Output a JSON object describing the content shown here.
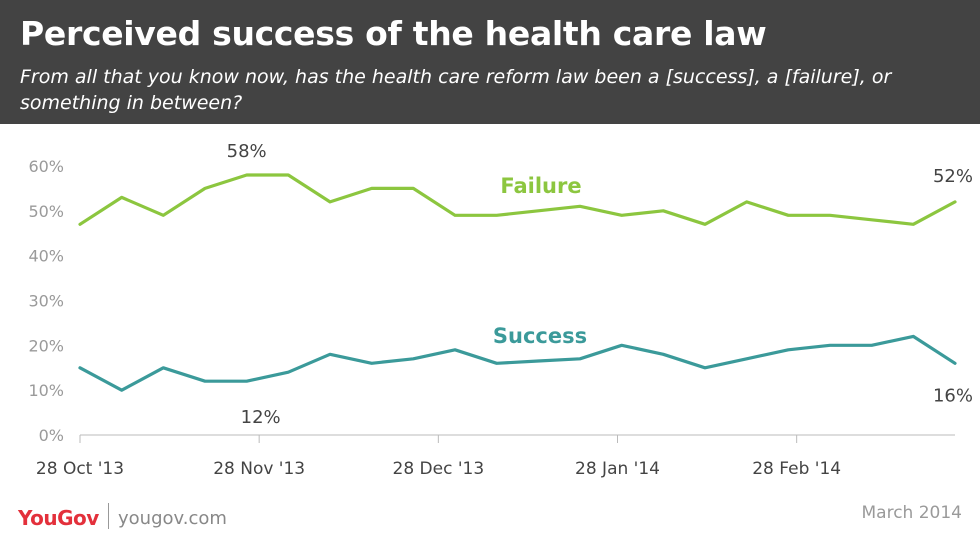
{
  "header": {
    "title": "Perceived success of the health care law",
    "subtitle": "From all that you know now, has the health care reform law been a [success], a [failure], or something in between?"
  },
  "footer": {
    "brand": "YouGov",
    "site": "yougov.com",
    "date": "March 2014"
  },
  "colors": {
    "failure": "#8cc63f",
    "success": "#3b9a9a",
    "header_bg": "#434343",
    "brand_red": "#e3303b"
  },
  "chart_data": {
    "type": "line",
    "title": "Perceived success of the health care law",
    "subtitle": "From all that you know now, has the health care reform law been a [success], a [failure], or something in between?",
    "xlabel": "",
    "ylabel": "",
    "ylim": [
      0,
      60
    ],
    "yticks": [
      "0%",
      "10%",
      "20%",
      "30%",
      "40%",
      "50%",
      "60%"
    ],
    "yticks_values": [
      0,
      10,
      20,
      30,
      40,
      50,
      60
    ],
    "xtick_labels": [
      "28 Oct '13",
      "28 Nov '13",
      "28 Dec '13",
      "28 Jan '14",
      "28 Feb '14"
    ],
    "xtick_index": [
      0,
      4.3,
      8.6,
      12.9,
      17.2
    ],
    "grid": false,
    "series": [
      {
        "name": "Failure",
        "color": "#8cc63f",
        "values": [
          47,
          53,
          49,
          55,
          58,
          58,
          52,
          55,
          55,
          49,
          49,
          50,
          51,
          49,
          50,
          47,
          52,
          49,
          49,
          48,
          47,
          52
        ]
      },
      {
        "name": "Success",
        "color": "#3b9a9a",
        "values": [
          15,
          10,
          15,
          12,
          12,
          14,
          18,
          16,
          17,
          19,
          16,
          16.5,
          17,
          20,
          18,
          15,
          17,
          19,
          20,
          20,
          22,
          16
        ]
      }
    ],
    "annotations": [
      {
        "series": 0,
        "index": 4,
        "text": "58%"
      },
      {
        "series": 0,
        "index": 21,
        "text": "52%"
      },
      {
        "series": 1,
        "index": 4,
        "text": "12%"
      },
      {
        "series": 1,
        "index": 21,
        "text": "16%"
      }
    ]
  }
}
